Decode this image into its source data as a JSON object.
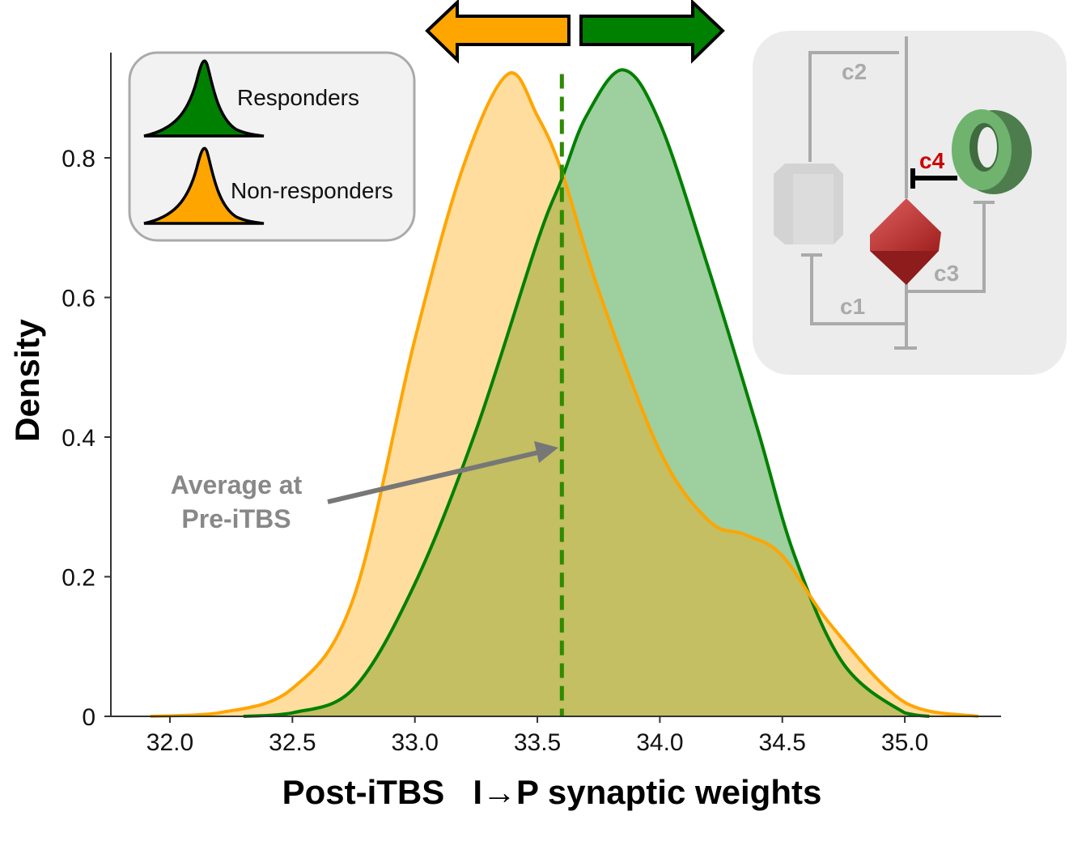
{
  "chart_data": {
    "type": "area",
    "title": "",
    "xlabel": "Post-iTBS   I→P synaptic weights",
    "ylabel": "Density",
    "xlim": [
      31.9,
      35.3
    ],
    "ylim": [
      0,
      0.95
    ],
    "xticks": [
      "32.0",
      "32.5",
      "33.0",
      "33.5",
      "34.0",
      "34.5",
      "35.0"
    ],
    "xtick_values": [
      32.0,
      32.5,
      33.0,
      33.5,
      34.0,
      34.5,
      35.0
    ],
    "yticks": [
      "0",
      "0.2",
      "0.4",
      "0.6",
      "0.8"
    ],
    "ytick_values": [
      0,
      0.2,
      0.4,
      0.6,
      0.8
    ],
    "grid": false,
    "legend_position": "top-left",
    "series": [
      {
        "name": "Non-responders",
        "color": "#ffa500",
        "x": [
          31.92,
          32.2,
          32.5,
          32.75,
          33.0,
          33.2,
          33.38,
          33.5,
          33.6,
          33.75,
          34.0,
          34.2,
          34.35,
          34.5,
          34.7,
          35.0,
          35.3
        ],
        "y": [
          0,
          0.005,
          0.04,
          0.17,
          0.54,
          0.79,
          0.92,
          0.86,
          0.78,
          0.61,
          0.38,
          0.28,
          0.26,
          0.23,
          0.13,
          0.02,
          0
        ]
      },
      {
        "name": "Responders",
        "color": "#008000",
        "x": [
          32.3,
          32.5,
          32.75,
          33.0,
          33.25,
          33.5,
          33.6,
          33.7,
          33.85,
          34.0,
          34.2,
          34.4,
          34.55,
          34.75,
          35.0,
          35.1
        ],
        "y": [
          0,
          0.005,
          0.04,
          0.19,
          0.41,
          0.68,
          0.77,
          0.86,
          0.926,
          0.85,
          0.64,
          0.41,
          0.23,
          0.075,
          0.005,
          0
        ]
      }
    ],
    "reference_line": {
      "x": 33.6,
      "style": "dashed",
      "color": "#2e8b00"
    },
    "annotation": {
      "lines": [
        "Average at",
        "Pre-iTBS"
      ],
      "color": "#888888"
    },
    "direction_arrows": {
      "left_color": "#ffa500",
      "right_color": "#008000"
    },
    "inset": {
      "labels": [
        "c1",
        "c2",
        "c3",
        "c4"
      ],
      "highlight_color": "#cc0000"
    }
  }
}
